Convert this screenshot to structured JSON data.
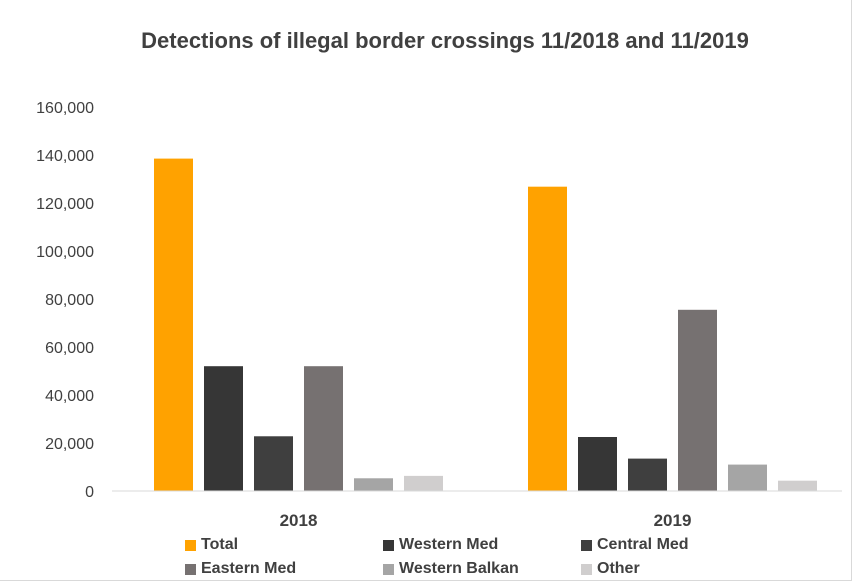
{
  "chart_data": {
    "type": "bar",
    "title": "Detections of illegal border crossings 11/2018 and 11/2019",
    "xlabel": "",
    "ylabel": "",
    "categories": [
      "2018",
      "2019"
    ],
    "ylim": [
      0,
      160000
    ],
    "yticks": [
      0,
      20000,
      40000,
      60000,
      80000,
      100000,
      120000,
      140000,
      160000
    ],
    "ytick_labels": [
      "0",
      "20,000",
      "40,000",
      "60,000",
      "80,000",
      "100,000",
      "120,000",
      "140,000",
      "160,000"
    ],
    "grid": false,
    "legend_position": "bottom",
    "series": [
      {
        "name": "Total",
        "color": "#ffa200",
        "values": [
          138500,
          126800
        ]
      },
      {
        "name": "Western Med",
        "color": "#363636",
        "values": [
          52000,
          22500
        ]
      },
      {
        "name": "Central Med",
        "color": "#3f3f3f",
        "values": [
          22800,
          13500
        ]
      },
      {
        "name": "Eastern Med",
        "color": "#767171",
        "values": [
          52000,
          75500
        ]
      },
      {
        "name": "Western Balkan",
        "color": "#a5a5a5",
        "values": [
          5300,
          11000
        ]
      },
      {
        "name": "Other",
        "color": "#d0cece",
        "values": [
          6300,
          4300
        ]
      }
    ]
  }
}
